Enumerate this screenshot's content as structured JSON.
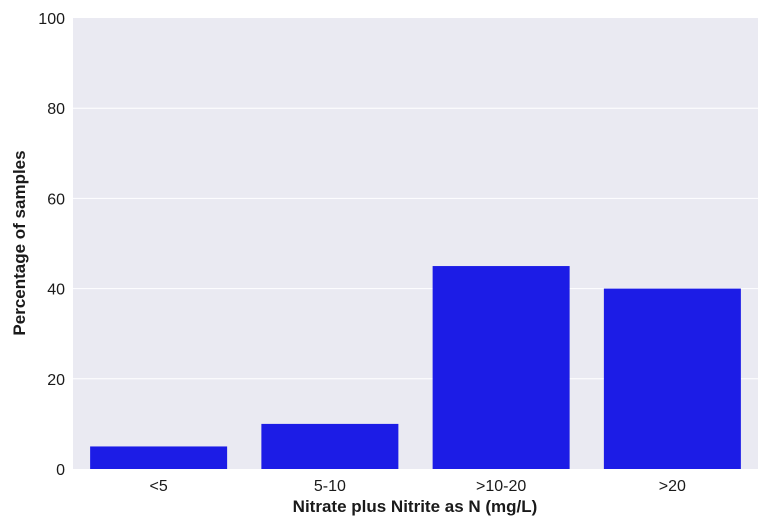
{
  "chart_data": {
    "type": "bar",
    "title": "",
    "xlabel": "Nitrate plus Nitrite as N (mg/L)",
    "ylabel": "Percentage of samples",
    "categories": [
      "<5",
      "5-10",
      ">10-20",
      ">20"
    ],
    "values": [
      5,
      10,
      45,
      40
    ],
    "ylim": [
      0,
      100
    ],
    "yticks": [
      0,
      20,
      40,
      60,
      80,
      100
    ],
    "grid": true,
    "bar_color": "#1c1ce6",
    "background_color": "#eaeaf2",
    "gridline_color": "#ffffff"
  }
}
